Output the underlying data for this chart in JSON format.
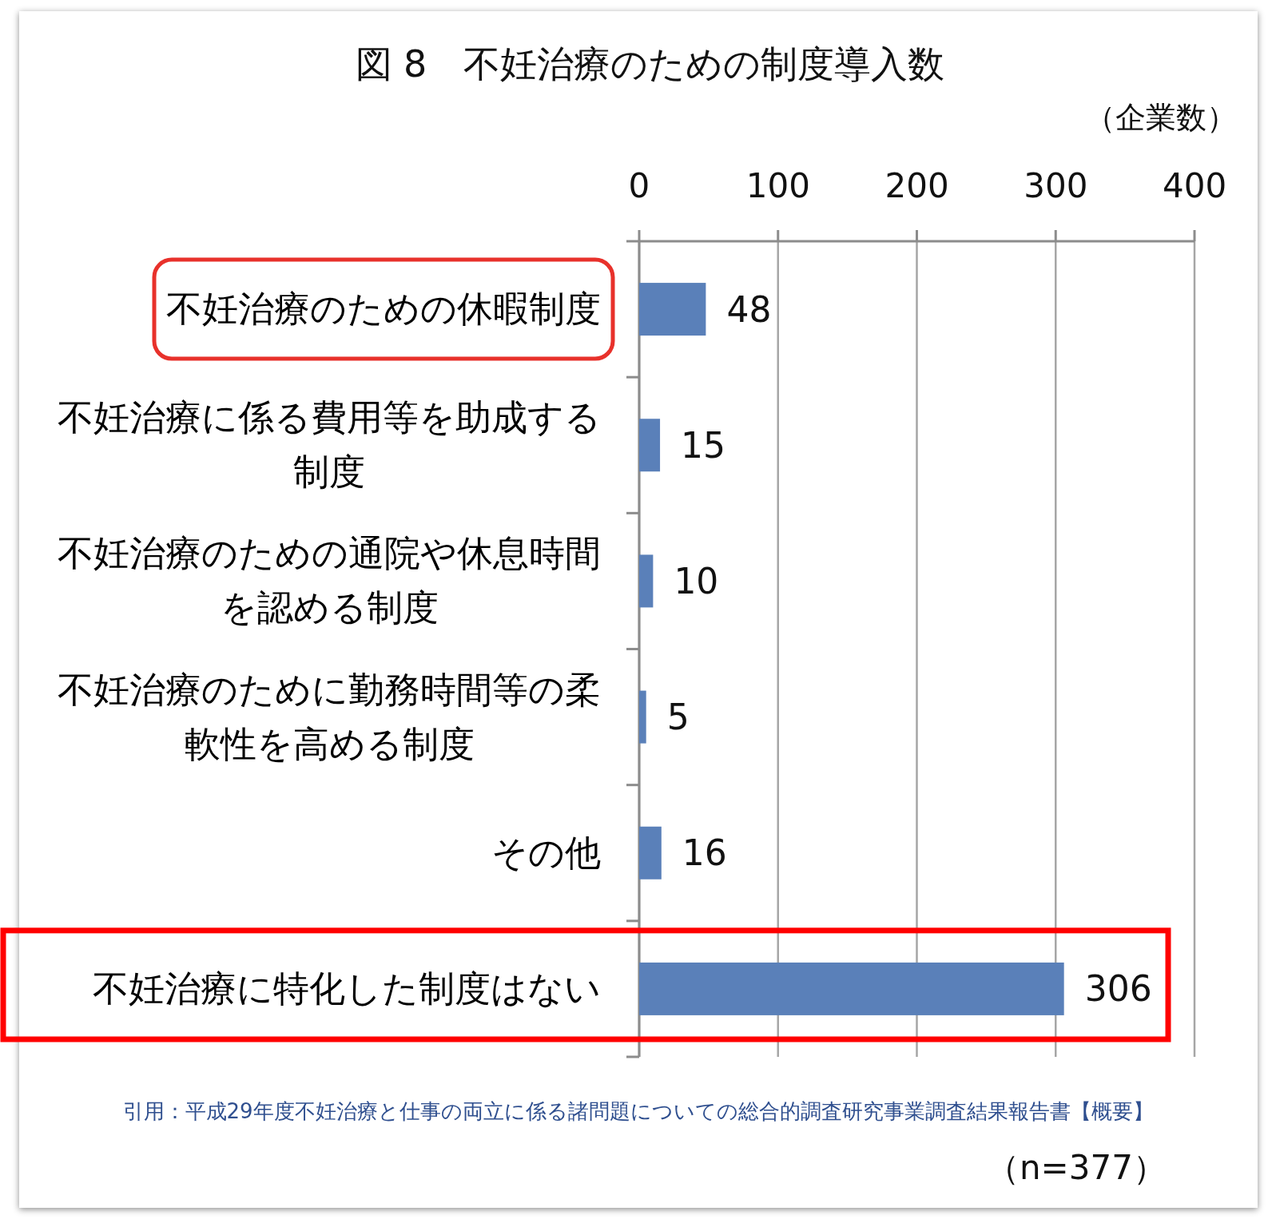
{
  "chart_data": {
    "type": "bar",
    "orientation": "horizontal",
    "title": "図 8　不妊治療のための制度導入数",
    "xlabel": "（企業数）",
    "categories": [
      "不妊治療のための休暇制度",
      "不妊治療に係る費用等を助成する制度",
      "不妊治療のための通院や休息時間を認める制度",
      "不妊治療のために勤務時間等の柔軟性を高める制度",
      "その他",
      "不妊治療に特化した制度はない"
    ],
    "values": [
      48,
      15,
      10,
      5,
      16,
      306
    ],
    "color": "#5a80b9",
    "xlim": [
      0,
      400
    ],
    "xticks": [
      0,
      100,
      200,
      300,
      400
    ],
    "grid": "x",
    "data_labels": true,
    "annotations": [
      "引用：平成29年度不妊治療と仕事の両立に係る諸問題についての総合的調査研究事業調査結果報告書【概要】",
      "（n=377）"
    ]
  }
}
